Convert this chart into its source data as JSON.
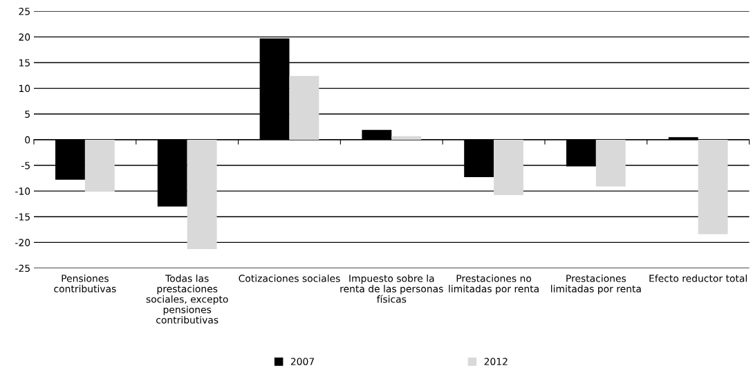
{
  "chart_data": {
    "type": "bar",
    "categories": [
      "Pensiones\ncontributivas",
      "Todas las\nprestaciones\nsociales, excepto\npensiones\ncontributivas",
      "Cotizaciones sociales",
      "Impuesto sobre la\nrenta de las personas\nfísicas",
      "Prestaciones no\nlimitadas por renta",
      "Prestaciones\nlimitadas por renta",
      "Efecto reductor total"
    ],
    "series": [
      {
        "name": "2007",
        "color": "#000000",
        "values": [
          -7.8,
          -13.0,
          19.7,
          1.9,
          -7.3,
          -5.2,
          0.5
        ]
      },
      {
        "name": "2012",
        "color": "#d9d9d9",
        "values": [
          -10.1,
          -21.3,
          12.4,
          0.7,
          -10.8,
          -9.1,
          -18.4
        ]
      }
    ],
    "ylim": [
      -25,
      25
    ],
    "yticks": [
      -25,
      -20,
      -15,
      -10,
      -5,
      0,
      5,
      10,
      15,
      20,
      25
    ],
    "grid": "y",
    "legend": "bottom"
  }
}
